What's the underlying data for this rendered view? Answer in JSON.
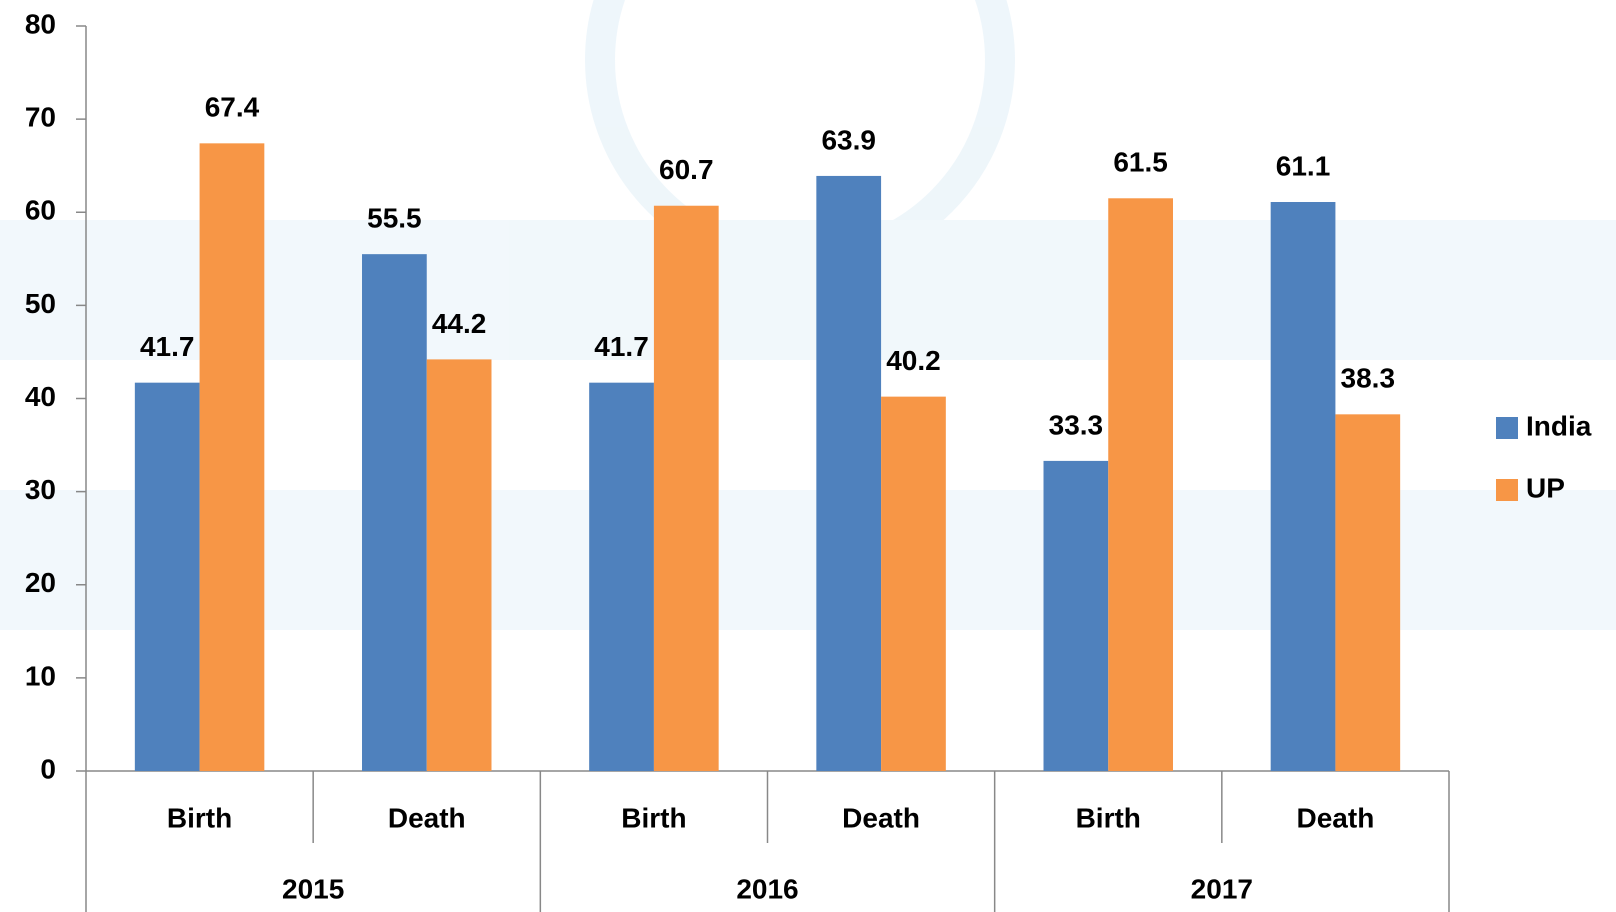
{
  "chart_data": {
    "type": "bar",
    "categories": [
      "Birth",
      "Death",
      "Birth",
      "Death",
      "Birth",
      "Death"
    ],
    "groups": [
      "2015",
      "2016",
      "2017"
    ],
    "series": [
      {
        "name": "India",
        "color": "#4f81bd",
        "values": [
          41.7,
          55.5,
          41.7,
          63.9,
          33.3,
          61.1
        ]
      },
      {
        "name": "UP",
        "color": "#f79646",
        "values": [
          67.4,
          44.2,
          60.7,
          40.2,
          61.5,
          38.3
        ]
      }
    ],
    "ylim": [
      0,
      80
    ],
    "yticks": [
      0,
      10,
      20,
      30,
      40,
      50,
      60,
      70,
      80
    ],
    "legend": "right"
  }
}
